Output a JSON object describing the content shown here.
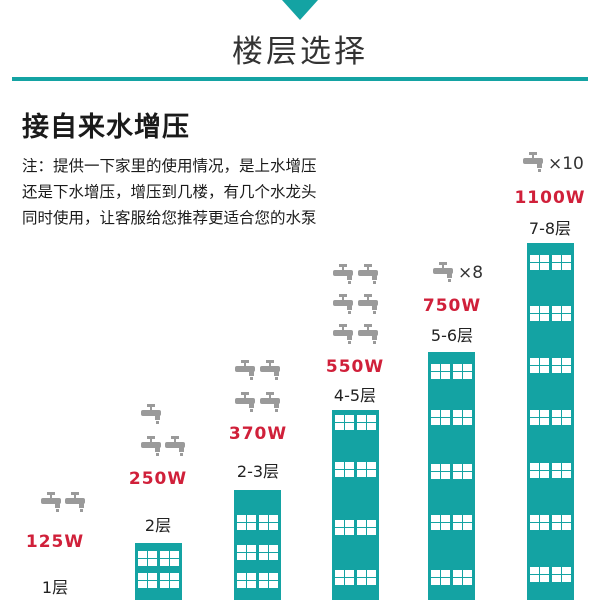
{
  "header": {
    "title": "楼层选择",
    "accent_color": "#14a3a3"
  },
  "section": {
    "heading": "接自来水增压",
    "note_lines": [
      "注：提供一下家里的使用情况，是上水增压",
      "还是下水增压，增压到几楼，有几个水龙头",
      "同时使用，让客服给您推荐更适合您的水泵"
    ]
  },
  "tiers": [
    {
      "power": "125W",
      "floors": "1层",
      "faucet_count": 2
    },
    {
      "power": "250W",
      "floors": "2层",
      "faucet_count": 3
    },
    {
      "power": "370W",
      "floors": "2-3层",
      "faucet_count": 4
    },
    {
      "power": "550W",
      "floors": "4-5层",
      "faucet_count": 6
    },
    {
      "power": "750W",
      "floors": "5-6层",
      "faucet_count": 1,
      "multiplier": "×8"
    },
    {
      "power": "1100W",
      "floors": "7-8层",
      "faucet_count": 1,
      "multiplier": "×10"
    }
  ],
  "colors": {
    "power_text": "#d0203a",
    "faucet": "#9a9a9a",
    "building": "#14a3a3"
  },
  "icons": {
    "faucet": "faucet-icon",
    "arrow": "triangle-down-icon"
  }
}
